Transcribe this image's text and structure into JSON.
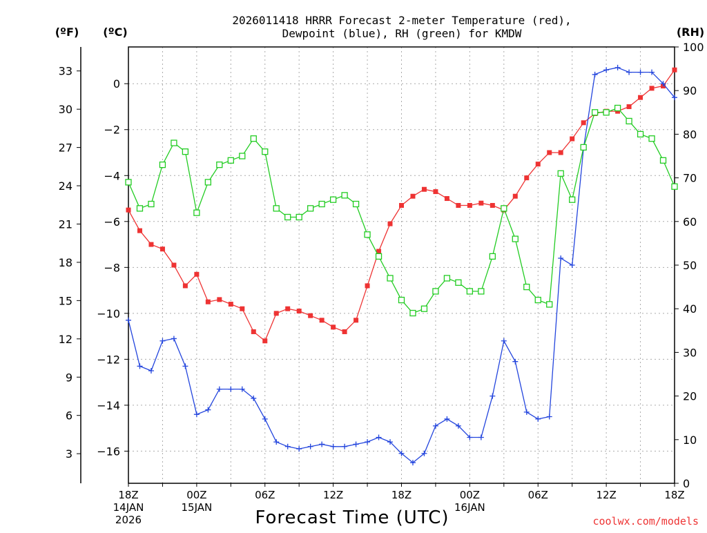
{
  "chart_data": {
    "type": "line",
    "title_line1": "2026011418 HRRR Forecast 2-meter Temperature (red),",
    "title_line2": "Dewpoint (blue), RH (green) for KMDW",
    "xlabel": "Forecast Time (UTC)",
    "credit": "coolwx.com/models",
    "unit_labels": {
      "fahrenheit": "(ºF)",
      "celsius": "(ºC)",
      "rh": "(RH)"
    },
    "x_ticks": [
      {
        "x": 0,
        "l1": "18Z",
        "l2": "14JAN",
        "l3": "2026"
      },
      {
        "x": 6,
        "l1": "00Z",
        "l2": "15JAN",
        "l3": ""
      },
      {
        "x": 12,
        "l1": "06Z",
        "l2": "",
        "l3": ""
      },
      {
        "x": 18,
        "l1": "12Z",
        "l2": "",
        "l3": ""
      },
      {
        "x": 24,
        "l1": "18Z",
        "l2": "",
        "l3": ""
      },
      {
        "x": 30,
        "l1": "00Z",
        "l2": "16JAN",
        "l3": ""
      },
      {
        "x": 36,
        "l1": "06Z",
        "l2": "",
        "l3": ""
      },
      {
        "x": 42,
        "l1": "12Z",
        "l2": "",
        "l3": ""
      },
      {
        "x": 48,
        "l1": "18Z",
        "l2": "",
        "l3": ""
      }
    ],
    "xlim": [
      0,
      48
    ],
    "celsius_axis": {
      "ylim": [
        -17.4,
        1.6
      ],
      "ticks": [
        0,
        -2,
        -4,
        -6,
        -8,
        -10,
        -12,
        -14,
        -16
      ],
      "labels": [
        "0",
        "−2",
        "−4",
        "−6",
        "−8",
        "−10",
        "−12",
        "−14",
        "−16"
      ]
    },
    "fahrenheit_axis": {
      "ticks": [
        33,
        30,
        27,
        24,
        21,
        18,
        15,
        12,
        9,
        6,
        3
      ],
      "labels": [
        "33",
        "30",
        "27",
        "24",
        "21",
        "18",
        "15",
        "12",
        "9",
        "6",
        "3"
      ]
    },
    "rh_axis": {
      "ylim": [
        0,
        100
      ],
      "ticks": [
        100,
        90,
        80,
        70,
        60,
        50,
        40,
        30,
        20,
        10,
        0
      ],
      "labels": [
        "100",
        "90",
        "80",
        "70",
        "60",
        "50",
        "40",
        "30",
        "20",
        "10",
        "0"
      ]
    },
    "grid": true,
    "series": [
      {
        "key": "temperature",
        "units": "celsius",
        "color": "#ee3333",
        "marker": "filled-square",
        "values": [
          -5.5,
          -6.4,
          -7.0,
          -7.2,
          -7.9,
          -8.8,
          -8.3,
          -9.5,
          -9.4,
          -9.6,
          -9.8,
          -10.8,
          -11.2,
          -10.0,
          -9.8,
          -9.9,
          -10.1,
          -10.3,
          -10.6,
          -10.8,
          -10.3,
          -8.8,
          -7.3,
          -6.1,
          -5.3,
          -4.9,
          -4.6,
          -4.7,
          -5.0,
          -5.3,
          -5.3,
          -5.2,
          -5.3,
          -5.5,
          -4.9,
          -4.1,
          -3.5,
          -3.0,
          -3.0,
          -2.4,
          -1.7,
          -1.3,
          -1.2,
          -1.2,
          -1.0,
          -0.6,
          -0.2,
          -0.1,
          0.6
        ]
      },
      {
        "key": "dewpoint",
        "units": "celsius",
        "color": "#2244dd",
        "marker": "plus",
        "values": [
          -10.3,
          -12.3,
          -12.5,
          -11.2,
          -11.1,
          -12.3,
          -14.4,
          -14.2,
          -13.3,
          -13.3,
          -13.3,
          -13.7,
          -14.6,
          -15.6,
          -15.8,
          -15.9,
          -15.8,
          -15.7,
          -15.8,
          -15.8,
          -15.7,
          -15.6,
          -15.4,
          -15.6,
          -16.1,
          -16.5,
          -16.1,
          -14.9,
          -14.6,
          -14.9,
          -15.4,
          -15.4,
          -13.6,
          -11.2,
          -12.1,
          -14.3,
          -14.6,
          -14.5,
          -7.6,
          -7.9,
          -2.8,
          0.4,
          0.6,
          0.7,
          0.5,
          0.5,
          0.5,
          0.0,
          -0.6
        ]
      },
      {
        "key": "relative_humidity",
        "units": "percent",
        "color": "#22cc22",
        "marker": "open-square",
        "values": [
          69,
          63,
          64,
          73,
          78,
          76,
          62,
          69,
          73,
          74,
          75,
          79,
          76,
          63,
          61,
          61,
          63,
          64,
          65,
          66,
          64,
          57,
          52,
          47,
          42,
          39,
          40,
          44,
          47,
          46,
          44,
          44,
          52,
          63,
          56,
          45,
          42,
          41,
          71,
          65,
          77,
          85,
          85,
          86,
          83,
          80,
          79,
          74,
          68
        ]
      }
    ]
  }
}
